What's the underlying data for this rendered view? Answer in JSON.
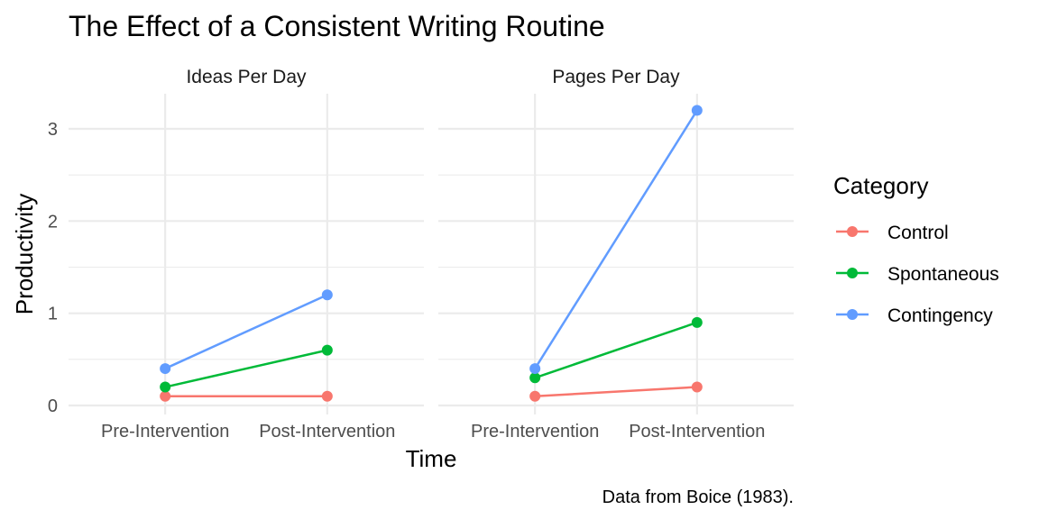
{
  "chart_data": {
    "type": "line",
    "title": "The Effect of a Consistent Writing Routine",
    "caption": "Data from Boice (1983).",
    "xlabel": "Time",
    "ylabel": "Productivity",
    "categories": [
      "Pre-Intervention",
      "Post-Intervention"
    ],
    "ylim": [
      0,
      3.2
    ],
    "yticks": [
      0,
      1,
      2,
      3
    ],
    "grid": true,
    "legend": {
      "title": "Category",
      "position": "right",
      "entries": [
        "Control",
        "Spontaneous",
        "Contingency"
      ]
    },
    "colors": {
      "Control": "#F8766D",
      "Spontaneous": "#00BA38",
      "Contingency": "#619CFF"
    },
    "facets": [
      {
        "label": "Ideas Per Day",
        "series": [
          {
            "name": "Control",
            "values": [
              0.1,
              0.1
            ]
          },
          {
            "name": "Spontaneous",
            "values": [
              0.2,
              0.6
            ]
          },
          {
            "name": "Contingency",
            "values": [
              0.4,
              1.2
            ]
          }
        ]
      },
      {
        "label": "Pages Per Day",
        "series": [
          {
            "name": "Control",
            "values": [
              0.1,
              0.2
            ]
          },
          {
            "name": "Spontaneous",
            "values": [
              0.3,
              0.9
            ]
          },
          {
            "name": "Contingency",
            "values": [
              0.4,
              3.2
            ]
          }
        ]
      }
    ]
  }
}
